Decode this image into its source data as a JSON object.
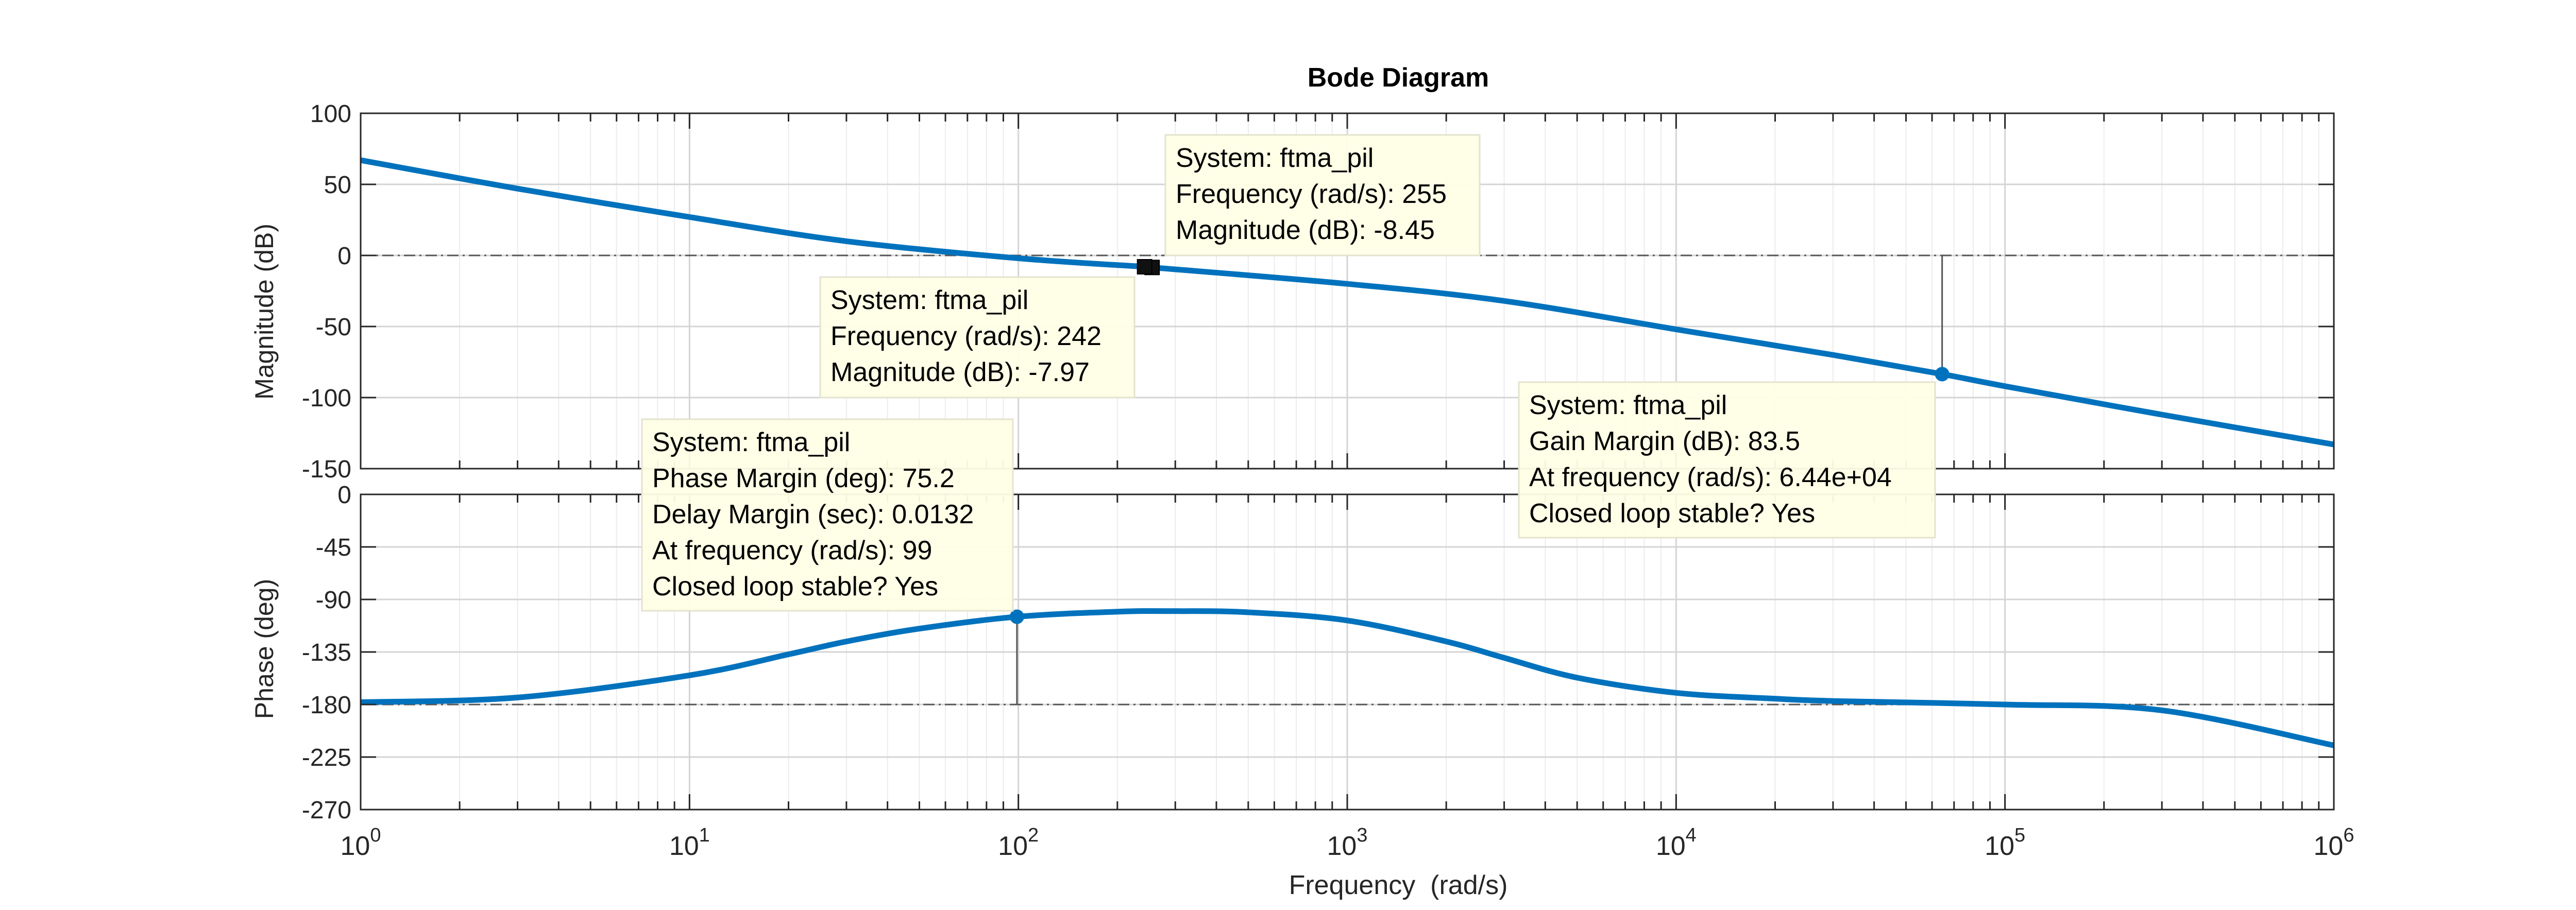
{
  "chart_data": {
    "type": "line",
    "title": "Bode Diagram",
    "xlabel": "Frequency  (rad/s)",
    "xscale": "log",
    "xlim": [
      1,
      1000000
    ],
    "x_ticks": [
      {
        "base": "10",
        "exp": "0"
      },
      {
        "base": "10",
        "exp": "1"
      },
      {
        "base": "10",
        "exp": "2"
      },
      {
        "base": "10",
        "exp": "3"
      },
      {
        "base": "10",
        "exp": "4"
      },
      {
        "base": "10",
        "exp": "5"
      },
      {
        "base": "10",
        "exp": "6"
      }
    ],
    "grid": true,
    "line_color": "#0072BD",
    "magnitude": {
      "ylabel": "Magnitude (dB)",
      "ylim": [
        -150,
        100
      ],
      "yticks": [
        "100",
        "50",
        "0",
        "-50",
        "-100",
        "-150"
      ],
      "reference_line": 0,
      "x": [
        1,
        3,
        10,
        30,
        100,
        242,
        255,
        1000,
        3000,
        10000,
        30000,
        64400,
        100000,
        300000,
        1000000
      ],
      "y": [
        67,
        47,
        27,
        10,
        -2,
        -7.97,
        -8.45,
        -20,
        -32,
        -52,
        -70,
        -83.5,
        -92,
        -112,
        -133
      ]
    },
    "phase": {
      "ylabel": "Phase (deg)",
      "ylim": [
        -270,
        0
      ],
      "yticks": [
        "0",
        "-45",
        "-90",
        "-135",
        "-180",
        "-225",
        "-270"
      ],
      "reference_line": -180,
      "x": [
        1,
        3,
        10,
        20,
        30,
        50,
        99,
        200,
        300,
        500,
        1000,
        2000,
        3000,
        5000,
        10000,
        20000,
        30000,
        100000,
        300000,
        1000000
      ],
      "y": [
        -178,
        -174,
        -155,
        -137,
        -126,
        -115,
        -104.8,
        -100.5,
        -100,
        -101,
        -108,
        -126,
        -140,
        -157,
        -170,
        -175,
        -177,
        -180,
        -185,
        -215
      ]
    },
    "annotations": [
      {
        "panel": "magnitude",
        "x": 255,
        "y": -8.45,
        "marker": "square",
        "lines": [
          "System: ftma_pil",
          "Frequency (rad/s): 255",
          "Magnitude (dB): -8.45"
        ]
      },
      {
        "panel": "magnitude",
        "x": 242,
        "y": -7.97,
        "marker": "square",
        "lines": [
          "System: ftma_pil",
          "Frequency (rad/s): 242",
          "Magnitude (dB): -7.97"
        ]
      },
      {
        "panel": "magnitude",
        "x": 64400,
        "y": -83.5,
        "marker": "dot",
        "stem_to": 0,
        "lines": [
          "System: ftma_pil",
          "Gain Margin (dB): 83.5",
          "At frequency (rad/s): 6.44e+04",
          "Closed loop stable? Yes"
        ]
      },
      {
        "panel": "phase",
        "x": 99,
        "y": -104.8,
        "marker": "dot",
        "stem_to": -180,
        "lines": [
          "System: ftma_pil",
          "Phase Margin (deg): 75.2",
          "Delay Margin (sec): 0.0132",
          "At frequency (rad/s): 99",
          "Closed loop stable? Yes"
        ]
      }
    ]
  }
}
